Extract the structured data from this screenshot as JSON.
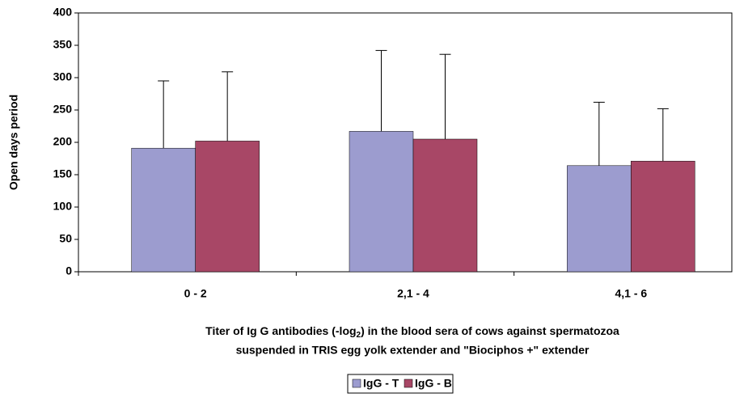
{
  "chart_data": {
    "type": "bar",
    "y_label": "Open days period",
    "x_label_lines": [
      [
        "Titer of Ig G antibodies (-log",
        "2",
        ") in the blood sera of cows against spermatozoa"
      ],
      [
        "suspended in TRIS egg yolk extender and \"Biociphos +\" extender"
      ]
    ],
    "categories": [
      "0 - 2",
      "2,1 - 4",
      "4,1 - 6"
    ],
    "series": [
      {
        "name": "IgG - T",
        "color": "#9c9ccf",
        "values": [
          191,
          217,
          164
        ],
        "errors": [
          104,
          125,
          98
        ]
      },
      {
        "name": "IgG - B",
        "color": "#a84766",
        "values": [
          202,
          205,
          171
        ],
        "errors": [
          107,
          131,
          81
        ]
      }
    ],
    "ylim": [
      0,
      400
    ],
    "yticks": [
      0,
      50,
      100,
      150,
      200,
      250,
      300,
      350,
      400
    ],
    "grid": false
  }
}
